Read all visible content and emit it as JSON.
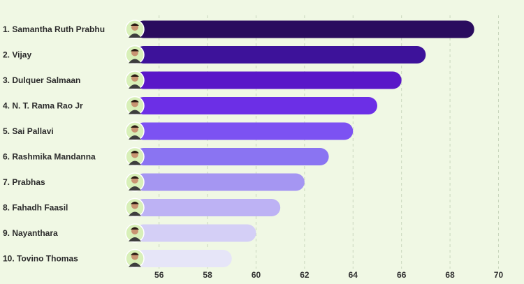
{
  "chart_data": {
    "type": "bar",
    "orientation": "horizontal",
    "title": "",
    "xlabel": "",
    "ylabel": "",
    "categories": [
      "1. Samantha Ruth  Prabhu",
      "2. Vijay",
      "3. Dulquer Salmaan",
      "4. N. T. Rama Rao Jr",
      "5. Sai Pallavi",
      "6. Rashmika Mandanna",
      "7. Prabhas",
      "8. Fahadh Faasil",
      "9. Nayanthara",
      "10. Tovino Thomas"
    ],
    "values": [
      69,
      67,
      66,
      65,
      64,
      63,
      62,
      61,
      60,
      59
    ],
    "xlim": [
      55,
      70
    ],
    "xticks": [
      "56",
      "58",
      "60",
      "62",
      "64",
      "66",
      "68",
      "70"
    ],
    "grid": true,
    "bar_colors": [
      "#2a0c5e",
      "#3d129a",
      "#5a17c8",
      "#6c2fe6",
      "#7c52f2",
      "#8a74f2",
      "#a596f2",
      "#bdb2f4",
      "#d4cff6",
      "#e6e5f8"
    ],
    "avatar_icons": [
      "samantha-avatar-icon",
      "vijay-avatar-icon",
      "dulquer-avatar-icon",
      "ntr-avatar-icon",
      "sai-pallavi-avatar-icon",
      "rashmika-avatar-icon",
      "prabhas-avatar-icon",
      "fahadh-avatar-icon",
      "nayanthara-avatar-icon",
      "tovino-avatar-icon"
    ]
  }
}
